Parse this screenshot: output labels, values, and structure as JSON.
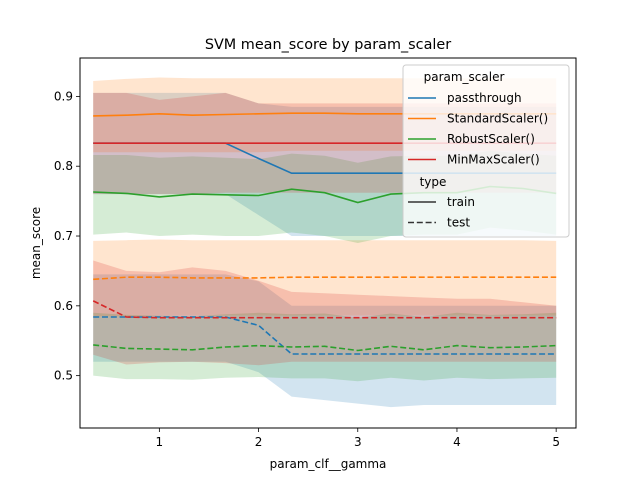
{
  "chart_data": {
    "type": "line",
    "title": "SVM mean_score by param_scaler",
    "xlabel": "param_clf__gamma",
    "ylabel": "mean_score",
    "xlim": [
      0.2,
      5.2
    ],
    "ylim": [
      0.425,
      0.955
    ],
    "xticks": [
      1,
      2,
      3,
      4,
      5
    ],
    "xtick_labels": [
      "1",
      "2",
      "3",
      "4",
      "5"
    ],
    "yticks": [
      0.5,
      0.6,
      0.7,
      0.8,
      0.9
    ],
    "ytick_labels": [
      "0.5",
      "0.6",
      "0.7",
      "0.8",
      "0.9"
    ],
    "grid": false,
    "legend": {
      "placement": "top-right",
      "hue_title": "param_scaler",
      "style_title": "type",
      "style_entries": [
        {
          "label": "train",
          "dash": "solid"
        },
        {
          "label": "test",
          "dash": "dashed"
        }
      ]
    },
    "x": [
      0.333,
      0.667,
      1.0,
      1.333,
      1.667,
      2.0,
      2.333,
      2.667,
      3.0,
      3.333,
      3.667,
      4.0,
      4.333,
      4.667,
      5.0
    ],
    "series": [
      {
        "name": "passthrough",
        "color": "#1f77b4",
        "train": [
          0.833,
          0.833,
          0.833,
          0.833,
          0.833,
          0.811,
          0.79,
          0.79,
          0.79,
          0.79,
          0.79,
          0.79,
          0.79,
          0.79,
          0.79
        ],
        "train_ci": [
          [
            0.76,
            0.905
          ],
          [
            0.76,
            0.905
          ],
          [
            0.76,
            0.905
          ],
          [
            0.76,
            0.905
          ],
          [
            0.76,
            0.905
          ],
          [
            0.73,
            0.89
          ],
          [
            0.7,
            0.885
          ],
          [
            0.7,
            0.885
          ],
          [
            0.7,
            0.885
          ],
          [
            0.7,
            0.885
          ],
          [
            0.7,
            0.885
          ],
          [
            0.7,
            0.885
          ],
          [
            0.7,
            0.885
          ],
          [
            0.7,
            0.885
          ],
          [
            0.7,
            0.885
          ]
        ],
        "test": [
          0.584,
          0.584,
          0.584,
          0.584,
          0.584,
          0.572,
          0.531,
          0.531,
          0.531,
          0.531,
          0.531,
          0.531,
          0.531,
          0.531,
          0.531
        ],
        "test_ci": [
          [
            0.52,
            0.645
          ],
          [
            0.52,
            0.645
          ],
          [
            0.52,
            0.645
          ],
          [
            0.52,
            0.645
          ],
          [
            0.52,
            0.645
          ],
          [
            0.505,
            0.635
          ],
          [
            0.47,
            0.6
          ],
          [
            0.465,
            0.6
          ],
          [
            0.46,
            0.6
          ],
          [
            0.455,
            0.6
          ],
          [
            0.458,
            0.6
          ],
          [
            0.458,
            0.6
          ],
          [
            0.458,
            0.6
          ],
          [
            0.458,
            0.6
          ],
          [
            0.458,
            0.6
          ]
        ]
      },
      {
        "name": "StandardScaler()",
        "color": "#ff7f0e",
        "train": [
          0.872,
          0.873,
          0.875,
          0.873,
          0.874,
          0.875,
          0.876,
          0.876,
          0.875,
          0.875,
          0.875,
          0.875,
          0.875,
          0.875,
          0.875
        ],
        "train_ci": [
          [
            0.82,
            0.922
          ],
          [
            0.82,
            0.925
          ],
          [
            0.82,
            0.927
          ],
          [
            0.82,
            0.926
          ],
          [
            0.82,
            0.926
          ],
          [
            0.82,
            0.926
          ],
          [
            0.822,
            0.926
          ],
          [
            0.822,
            0.926
          ],
          [
            0.822,
            0.926
          ],
          [
            0.822,
            0.926
          ],
          [
            0.822,
            0.926
          ],
          [
            0.822,
            0.926
          ],
          [
            0.822,
            0.926
          ],
          [
            0.822,
            0.926
          ],
          [
            0.822,
            0.926
          ]
        ],
        "test": [
          0.638,
          0.641,
          0.641,
          0.64,
          0.64,
          0.64,
          0.641,
          0.641,
          0.641,
          0.641,
          0.641,
          0.641,
          0.641,
          0.641,
          0.641
        ],
        "test_ci": [
          [
            0.585,
            0.693
          ],
          [
            0.585,
            0.694
          ],
          [
            0.586,
            0.695
          ],
          [
            0.586,
            0.694
          ],
          [
            0.586,
            0.694
          ],
          [
            0.586,
            0.694
          ],
          [
            0.586,
            0.694
          ],
          [
            0.586,
            0.694
          ],
          [
            0.586,
            0.694
          ],
          [
            0.586,
            0.694
          ],
          [
            0.586,
            0.694
          ],
          [
            0.586,
            0.694
          ],
          [
            0.586,
            0.694
          ],
          [
            0.586,
            0.694
          ],
          [
            0.586,
            0.693
          ]
        ]
      },
      {
        "name": "RobustScaler()",
        "color": "#2ca02c",
        "train": [
          0.763,
          0.761,
          0.756,
          0.76,
          0.759,
          0.758,
          0.767,
          0.762,
          0.748,
          0.76,
          0.762,
          0.762,
          0.771,
          0.768,
          0.761
        ],
        "train_ci": [
          [
            0.702,
            0.816
          ],
          [
            0.705,
            0.816
          ],
          [
            0.7,
            0.812
          ],
          [
            0.702,
            0.814
          ],
          [
            0.7,
            0.812
          ],
          [
            0.7,
            0.81
          ],
          [
            0.705,
            0.818
          ],
          [
            0.7,
            0.815
          ],
          [
            0.69,
            0.805
          ],
          [
            0.7,
            0.814
          ],
          [
            0.702,
            0.815
          ],
          [
            0.702,
            0.815
          ],
          [
            0.712,
            0.822
          ],
          [
            0.708,
            0.818
          ],
          [
            0.702,
            0.815
          ]
        ],
        "test": [
          0.544,
          0.539,
          0.538,
          0.537,
          0.541,
          0.543,
          0.541,
          0.542,
          0.536,
          0.542,
          0.537,
          0.543,
          0.54,
          0.541,
          0.543
        ],
        "test_ci": [
          [
            0.5,
            0.59
          ],
          [
            0.495,
            0.587
          ],
          [
            0.495,
            0.586
          ],
          [
            0.494,
            0.585
          ],
          [
            0.497,
            0.588
          ],
          [
            0.498,
            0.59
          ],
          [
            0.496,
            0.588
          ],
          [
            0.496,
            0.589
          ],
          [
            0.492,
            0.583
          ],
          [
            0.497,
            0.589
          ],
          [
            0.493,
            0.584
          ],
          [
            0.497,
            0.59
          ],
          [
            0.495,
            0.587
          ],
          [
            0.496,
            0.588
          ],
          [
            0.497,
            0.59
          ]
        ]
      },
      {
        "name": "MinMaxScaler()",
        "color": "#d62728",
        "train": [
          0.833,
          0.833,
          0.833,
          0.833,
          0.833,
          0.833,
          0.833,
          0.833,
          0.833,
          0.833,
          0.833,
          0.833,
          0.833,
          0.833,
          0.833
        ],
        "train_ci": [
          [
            0.76,
            0.905
          ],
          [
            0.76,
            0.905
          ],
          [
            0.76,
            0.895
          ],
          [
            0.76,
            0.9
          ],
          [
            0.762,
            0.905
          ],
          [
            0.762,
            0.89
          ],
          [
            0.762,
            0.89
          ],
          [
            0.762,
            0.89
          ],
          [
            0.762,
            0.89
          ],
          [
            0.762,
            0.89
          ],
          [
            0.762,
            0.89
          ],
          [
            0.762,
            0.89
          ],
          [
            0.762,
            0.89
          ],
          [
            0.762,
            0.89
          ],
          [
            0.762,
            0.89
          ]
        ],
        "test": [
          0.607,
          0.584,
          0.583,
          0.583,
          0.583,
          0.583,
          0.583,
          0.583,
          0.583,
          0.583,
          0.583,
          0.583,
          0.583,
          0.583,
          0.583
        ],
        "test_ci": [
          [
            0.53,
            0.665
          ],
          [
            0.516,
            0.65
          ],
          [
            0.519,
            0.648
          ],
          [
            0.52,
            0.655
          ],
          [
            0.518,
            0.65
          ],
          [
            0.515,
            0.636
          ],
          [
            0.52,
            0.62
          ],
          [
            0.52,
            0.618
          ],
          [
            0.52,
            0.616
          ],
          [
            0.52,
            0.614
          ],
          [
            0.52,
            0.612
          ],
          [
            0.52,
            0.61
          ],
          [
            0.52,
            0.61
          ],
          [
            0.52,
            0.605
          ],
          [
            0.52,
            0.6
          ]
        ]
      }
    ]
  }
}
